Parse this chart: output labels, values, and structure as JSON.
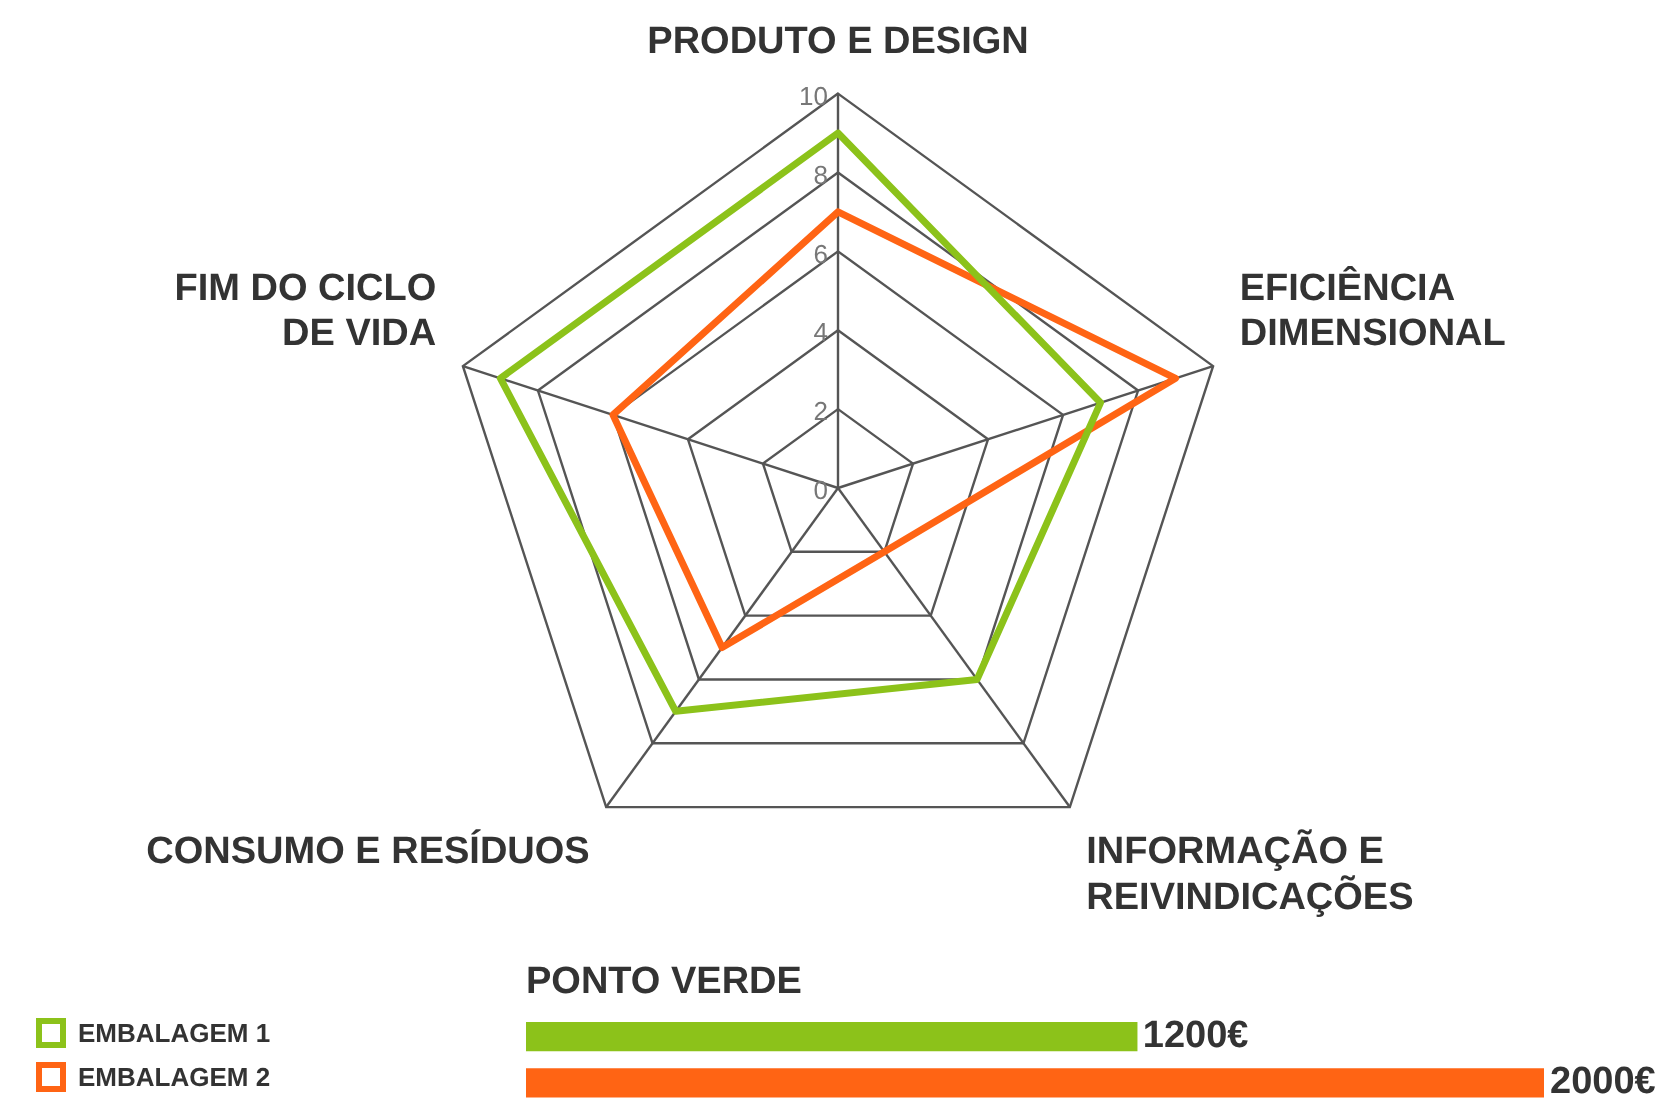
{
  "chart_data": [
    {
      "type": "radar",
      "categories": [
        "PRODUTO E DESIGN",
        "EFICIÊNCIA\nDIMENSIONAL",
        "INFORMAÇÃO E\nREIVINDICAÇÕES",
        "CONSUMO E RESÍDUOS",
        "FIM DO CICLO\nDE VIDA"
      ],
      "series": [
        {
          "name": "EMBALAGEM 1",
          "color": "#8cc21a",
          "values": [
            9,
            7,
            6,
            7,
            9
          ]
        },
        {
          "name": "EMBALAGEM 2",
          "color": "#ff6414",
          "values": [
            7,
            9,
            2,
            5,
            6
          ]
        }
      ],
      "ylim": [
        0,
        10
      ],
      "yticks": [
        0,
        2,
        4,
        6,
        8,
        10
      ],
      "grid": true,
      "legend": "bottom left",
      "marker": "none"
    },
    {
      "type": "bar",
      "orientation": "horizontal",
      "title": "PONTO VERDE",
      "categories": [
        null,
        null
      ],
      "values": [
        1200,
        2000
      ],
      "colors": [
        "#8cc21a",
        "#ff6414"
      ],
      "value_labels": [
        "1200€",
        "2000€"
      ]
    }
  ]
}
